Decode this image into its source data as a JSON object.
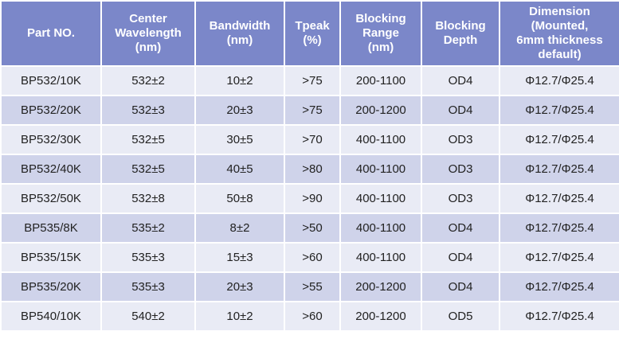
{
  "table": {
    "header": [
      [
        "Part NO."
      ],
      [
        "Center",
        "Wavelength",
        "(nm)"
      ],
      [
        "Bandwidth",
        "(nm)"
      ],
      [
        "Tpeak",
        "(%)"
      ],
      [
        "Blocking",
        "Range",
        "(nm)"
      ],
      [
        "Blocking",
        "Depth"
      ],
      [
        "Dimension",
        "(Mounted,",
        "6mm thickness",
        "default)"
      ]
    ],
    "rows": [
      [
        "BP532/10K",
        "532±2",
        "10±2",
        ">75",
        "200-1100",
        "OD4",
        "Φ12.7/Φ25.4"
      ],
      [
        "BP532/20K",
        "532±3",
        "20±3",
        ">75",
        "200-1200",
        "OD4",
        "Φ12.7/Φ25.4"
      ],
      [
        "BP532/30K",
        "532±5",
        "30±5",
        ">70",
        "400-1100",
        "OD3",
        "Φ12.7/Φ25.4"
      ],
      [
        "BP532/40K",
        "532±5",
        "40±5",
        ">80",
        "400-1100",
        "OD3",
        "Φ12.7/Φ25.4"
      ],
      [
        "BP532/50K",
        "532±8",
        "50±8",
        ">90",
        "400-1100",
        "OD3",
        "Φ12.7/Φ25.4"
      ],
      [
        "BP535/8K",
        "535±2",
        "8±2",
        ">50",
        "400-1100",
        "OD4",
        "Φ12.7/Φ25.4"
      ],
      [
        "BP535/15K",
        "535±3",
        "15±3",
        ">60",
        "400-1100",
        "OD4",
        "Φ12.7/Φ25.4"
      ],
      [
        "BP535/20K",
        "535±3",
        "20±3",
        ">55",
        "200-1200",
        "OD4",
        "Φ12.7/Φ25.4"
      ],
      [
        "BP540/10K",
        "540±2",
        "10±2",
        ">60",
        "200-1200",
        "OD5",
        "Φ12.7/Φ25.4"
      ]
    ]
  }
}
